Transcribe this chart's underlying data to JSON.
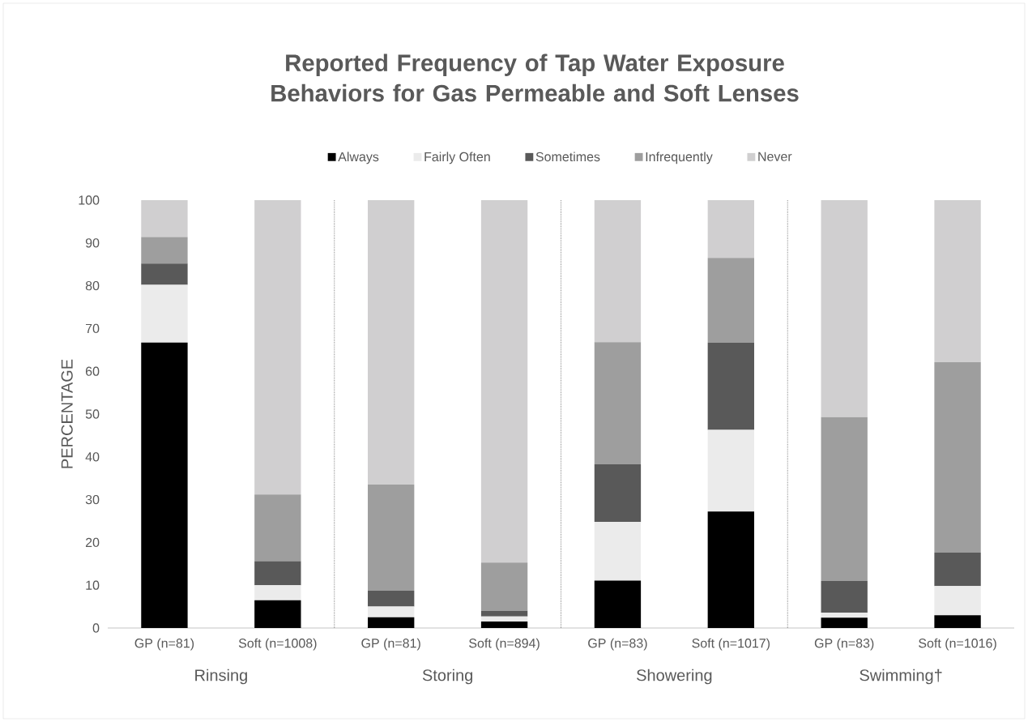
{
  "chart_data": {
    "type": "bar",
    "stacked": true,
    "title": "Reported Frequency of Tap Water Exposure Behaviors for Gas Permeable and Soft Lenses",
    "ylabel": "PERCENTAGE",
    "categories": [
      "GP  (n=81)",
      "Soft (n=1008)",
      "GP (n=81)",
      "Soft (n=894)",
      "GP (n=83)",
      "Soft (n=1017)",
      "GP (n=83)",
      "Soft (n=1016)"
    ],
    "series": [
      {
        "name": "Always",
        "color": "#000000",
        "values": [
          66.7,
          6.5,
          2.5,
          1.5,
          11.1,
          27.2,
          2.4,
          3.0
        ]
      },
      {
        "name": "Fairly Often",
        "color": "#ebebeb",
        "values": [
          13.5,
          3.5,
          2.5,
          1.2,
          13.7,
          19.1,
          1.2,
          6.8
        ]
      },
      {
        "name": "Sometimes",
        "color": "#595959",
        "values": [
          5.0,
          5.6,
          3.7,
          1.3,
          13.5,
          20.4,
          7.4,
          7.8
        ]
      },
      {
        "name": "Infrequently",
        "color": "#9e9e9e",
        "values": [
          6.2,
          15.6,
          24.8,
          11.3,
          28.5,
          19.8,
          38.3,
          44.5
        ]
      },
      {
        "name": "Never",
        "color": "#d0cfd0",
        "values": [
          8.6,
          68.8,
          66.5,
          84.7,
          33.2,
          13.5,
          50.7,
          37.9
        ]
      }
    ],
    "ylim": [
      0,
      100
    ],
    "yticks": [
      0,
      10,
      20,
      30,
      40,
      50,
      60,
      70,
      80,
      90,
      100
    ],
    "grid": false,
    "legend": "top",
    "annotations": [
      "Rinsing",
      "Storing",
      "Showering",
      "Swimming†"
    ]
  }
}
